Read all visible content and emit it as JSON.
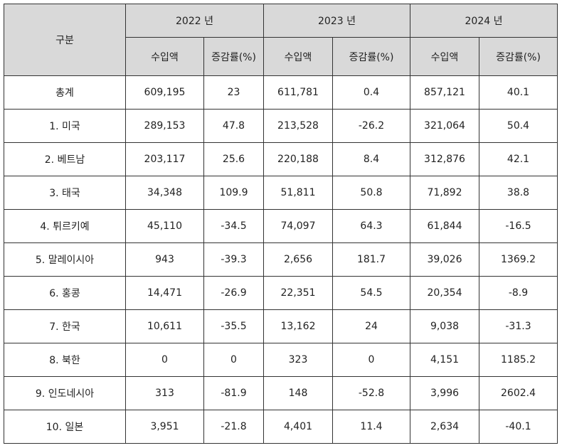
{
  "header": {
    "category": "구분",
    "years": [
      "2022 년",
      "2023 년",
      "2024 년"
    ],
    "sub": [
      "수입액",
      "증감률(%)"
    ]
  },
  "rows": [
    {
      "label": "총계",
      "v": [
        "609,195",
        "23",
        "611,781",
        "0.4",
        "857,121",
        "40.1"
      ]
    },
    {
      "label": "1. 미국",
      "v": [
        "289,153",
        "47.8",
        "213,528",
        "-26.2",
        "321,064",
        "50.4"
      ]
    },
    {
      "label": "2. 베트남",
      "v": [
        "203,117",
        "25.6",
        "220,188",
        "8.4",
        "312,876",
        "42.1"
      ]
    },
    {
      "label": "3. 태국",
      "v": [
        "34,348",
        "109.9",
        "51,811",
        "50.8",
        "71,892",
        "38.8"
      ]
    },
    {
      "label": "4. 튀르키예",
      "v": [
        "45,110",
        "-34.5",
        "74,097",
        "64.3",
        "61,844",
        "-16.5"
      ]
    },
    {
      "label": "5. 말레이시아",
      "v": [
        "943",
        "-39.3",
        "2,656",
        "181.7",
        "39,026",
        "1369.2"
      ]
    },
    {
      "label": "6. 홍콩",
      "v": [
        "14,471",
        "-26.9",
        "22,351",
        "54.5",
        "20,354",
        "-8.9"
      ]
    },
    {
      "label": "7. 한국",
      "v": [
        "10,611",
        "-35.5",
        "13,162",
        "24",
        "9,038",
        "-31.3"
      ]
    },
    {
      "label": "8. 북한",
      "v": [
        "0",
        "0",
        "323",
        "0",
        "4,151",
        "1185.2"
      ]
    },
    {
      "label": "9. 인도네시아",
      "v": [
        "313",
        "-81.9",
        "148",
        "-52.8",
        "3,996",
        "2602.4"
      ]
    },
    {
      "label": "10. 일본",
      "v": [
        "3,951",
        "-21.8",
        "4,401",
        "11.4",
        "2,634",
        "-40.1"
      ]
    }
  ]
}
